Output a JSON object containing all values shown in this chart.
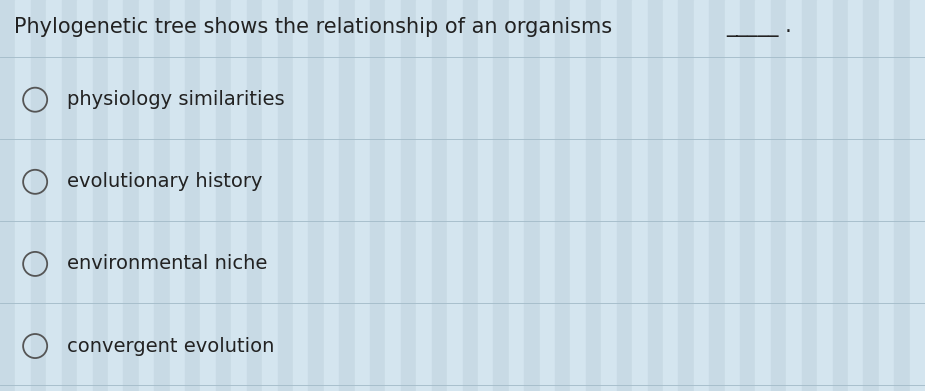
{
  "title_plain": "Phylogenetic tree shows the relationship of an organisms ",
  "title_blank": "_____ .",
  "options": [
    "physiology similarities",
    "evolutionary history",
    "environmental niche",
    "convergent evolution"
  ],
  "bg_color_light": "#e8f0f5",
  "bg_color_main": "#ccdde8",
  "stripe_color": "#bdd0dc",
  "line_color": "#a8bfcc",
  "text_color": "#222222",
  "circle_color": "#555555",
  "title_fontsize": 15,
  "option_fontsize": 14,
  "fig_width": 9.25,
  "fig_height": 3.91,
  "n_stripes": 60
}
